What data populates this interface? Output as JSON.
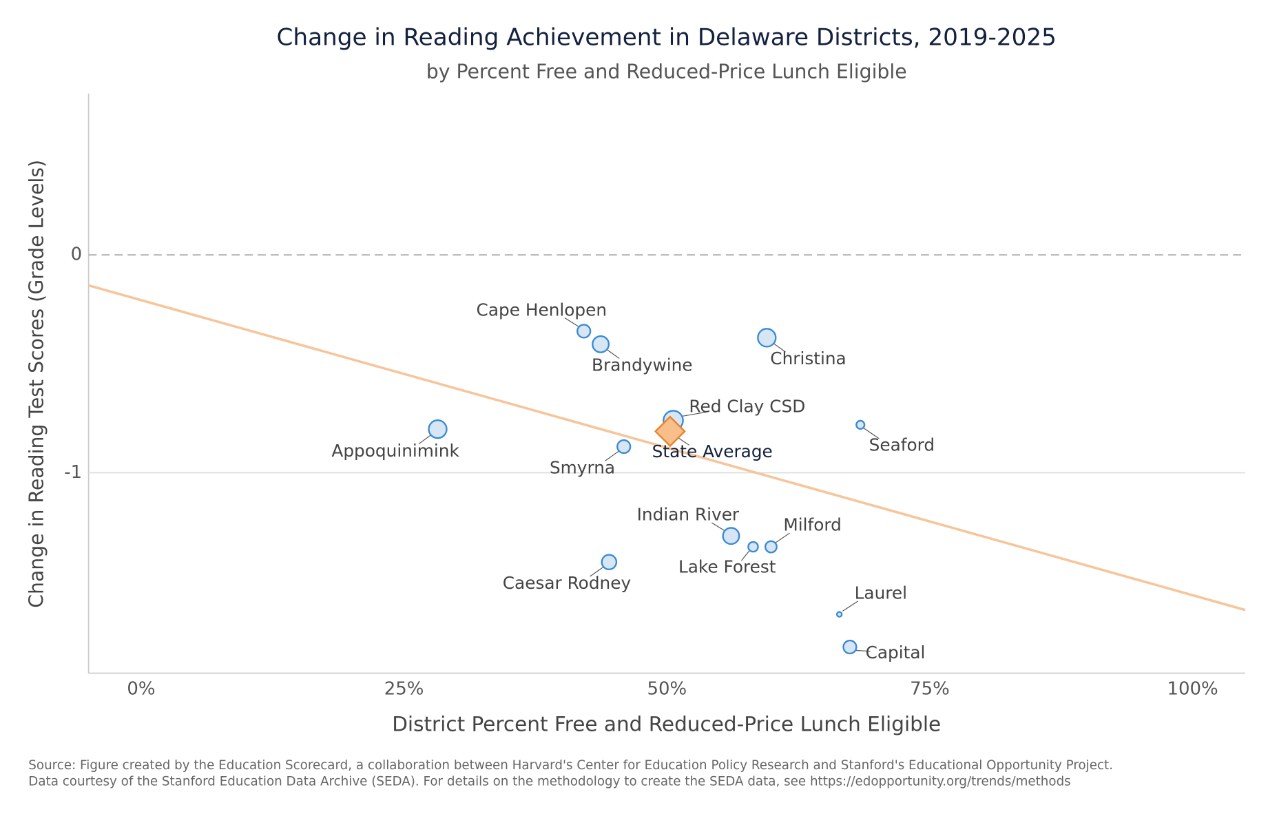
{
  "chart_data": {
    "type": "scatter",
    "title": "Change in Reading Achievement in Delaware Districts, 2019-2025",
    "subtitle": "by Percent Free and Reduced-Price Lunch Eligible",
    "x_label": "District Percent Free and Reduced-Price Lunch Eligible",
    "y_label": "Change in Reading Test Scores (Grade Levels)",
    "xlim": [
      -5,
      105
    ],
    "ylim": [
      -1.92,
      0.74
    ],
    "xticks": [
      {
        "value": 0,
        "label": "0%"
      },
      {
        "value": 25,
        "label": "25%"
      },
      {
        "value": 50,
        "label": "50%"
      },
      {
        "value": 75,
        "label": "75%"
      },
      {
        "value": 100,
        "label": "100%"
      }
    ],
    "yticks": [
      0,
      -1
    ],
    "grid": true,
    "points": {
      "labels": [
        "Cape Henlopen",
        "Brandywine",
        "Christina",
        "Red Clay CSD",
        "Appoquinimink",
        "Smyrna",
        "Seaford",
        "Indian River",
        "Lake Forest",
        "Milford",
        "Caesar Rodney",
        "Laurel",
        "Capital"
      ],
      "x": [
        42.1,
        43.7,
        59.5,
        50.6,
        28.2,
        45.9,
        68.4,
        56.1,
        58.2,
        59.9,
        44.5,
        66.4,
        67.4
      ],
      "y": [
        -0.35,
        -0.41,
        -0.38,
        -0.76,
        -0.8,
        -0.88,
        -0.78,
        -1.29,
        -1.34,
        -1.34,
        -1.41,
        -1.65,
        -1.8
      ],
      "sizes": [
        64,
        100,
        121,
        144,
        121,
        64,
        25,
        100,
        36,
        49,
        81,
        9,
        64
      ],
      "color": "#3a8ad4",
      "fill": "#d6e6f4"
    },
    "state_average": {
      "label": "State Average",
      "x": 50.3,
      "y": -0.81,
      "color": "#e8832a",
      "fill": "#f9be8a"
    },
    "trend": {
      "x": [
        -5,
        105
      ],
      "y": [
        -0.14,
        -1.63
      ],
      "color": "#f6c59a"
    },
    "source": [
      "Source: Figure created by the Education Scorecard, a collaboration between Harvard's Center for Education Policy Research and Stanford's Educational Opportunity Project.",
      "Data courtesy of the Stanford Education Data Archive (SEDA). For details on the methodology to create the SEDA data, see https://edopportunity.org/trends/methods"
    ]
  }
}
